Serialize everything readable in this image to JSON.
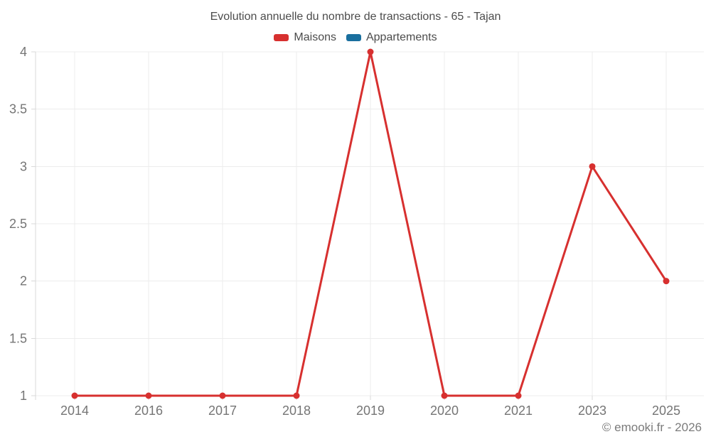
{
  "chart_data": {
    "type": "line",
    "title": "Evolution annuelle du nombre de transactions - 65 - Tajan",
    "categories": [
      "2014",
      "2016",
      "2017",
      "2018",
      "2019",
      "2020",
      "2021",
      "2023",
      "2025"
    ],
    "series": [
      {
        "name": "Maisons",
        "color": "#d7302f",
        "values": [
          1,
          1,
          1,
          1,
          4,
          1,
          1,
          3,
          2
        ]
      },
      {
        "name": "Appartements",
        "color": "#1a6f9e",
        "values": []
      }
    ],
    "xlabel": "",
    "ylabel": "",
    "ylim": [
      1,
      4
    ],
    "y_ticks": [
      1,
      1.5,
      2,
      2.5,
      3,
      3.5,
      4
    ],
    "grid": true,
    "legend_position": "top",
    "marker": "circle"
  },
  "colors": {
    "grid": "#ececec",
    "axis": "#d9d9d9",
    "tick_label": "#757575",
    "title_text": "#4c4c4c",
    "background": "#ffffff"
  },
  "footer": {
    "copyright": "© emooki.fr - 2026"
  }
}
